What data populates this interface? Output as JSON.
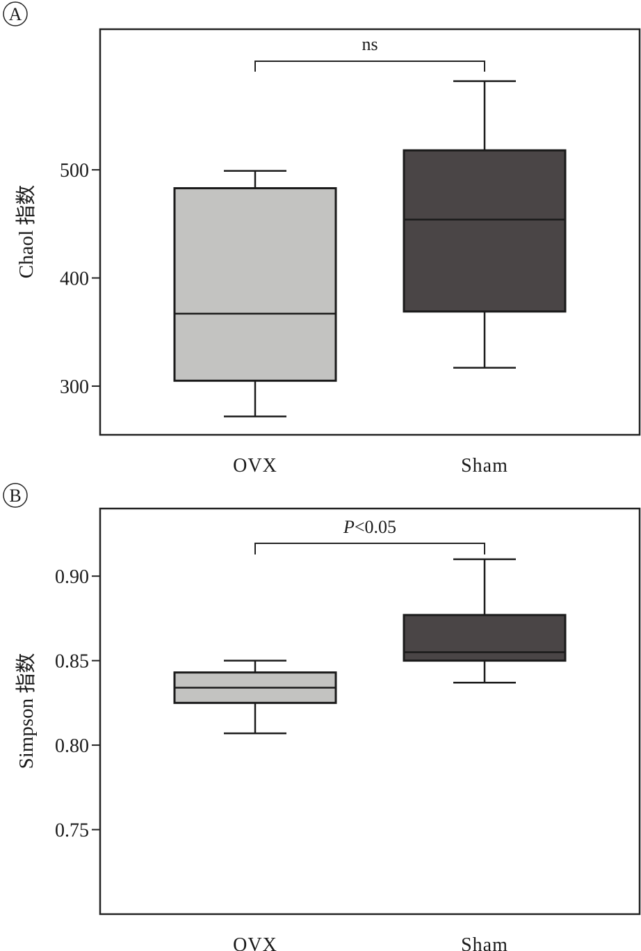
{
  "chart_data": [
    {
      "type": "box",
      "panel_label": "A",
      "ylabel": "Chaol 指数",
      "ylim": [
        255,
        630
      ],
      "yticks": [
        300,
        400,
        500
      ],
      "categories": [
        "OVX",
        "Sham"
      ],
      "boxes": [
        {
          "category": "OVX",
          "whisker_low": 272,
          "q1": 305,
          "median": 367,
          "q3": 483,
          "whisker_high": 499,
          "fill": "#c3c3c1"
        },
        {
          "category": "Sham",
          "whisker_low": 317,
          "q1": 369,
          "median": 454,
          "q3": 518,
          "whisker_high": 582,
          "fill": "#4a4546"
        }
      ],
      "significance": {
        "label_parts": [
          "ns"
        ],
        "from": "OVX",
        "to": "Sham"
      },
      "grid": false,
      "legend": "none"
    },
    {
      "type": "box",
      "panel_label": "B",
      "ylabel": "Simpson 指数",
      "ylim": [
        0.7,
        0.94
      ],
      "yticks": [
        "0.75",
        "0.80",
        "0.85",
        "0.90"
      ],
      "categories": [
        "OVX",
        "Sham"
      ],
      "boxes": [
        {
          "category": "OVX",
          "whisker_low": 0.807,
          "q1": 0.825,
          "median": 0.834,
          "q3": 0.843,
          "whisker_high": 0.85,
          "fill": "#c3c3c1"
        },
        {
          "category": "Sham",
          "whisker_low": 0.837,
          "q1": 0.85,
          "median": 0.855,
          "q3": 0.877,
          "whisker_high": 0.91,
          "fill": "#4a4546"
        }
      ],
      "significance": {
        "label_parts": [
          "P",
          "<0.05"
        ],
        "from": "OVX",
        "to": "Sham"
      },
      "grid": false,
      "legend": "none"
    }
  ]
}
